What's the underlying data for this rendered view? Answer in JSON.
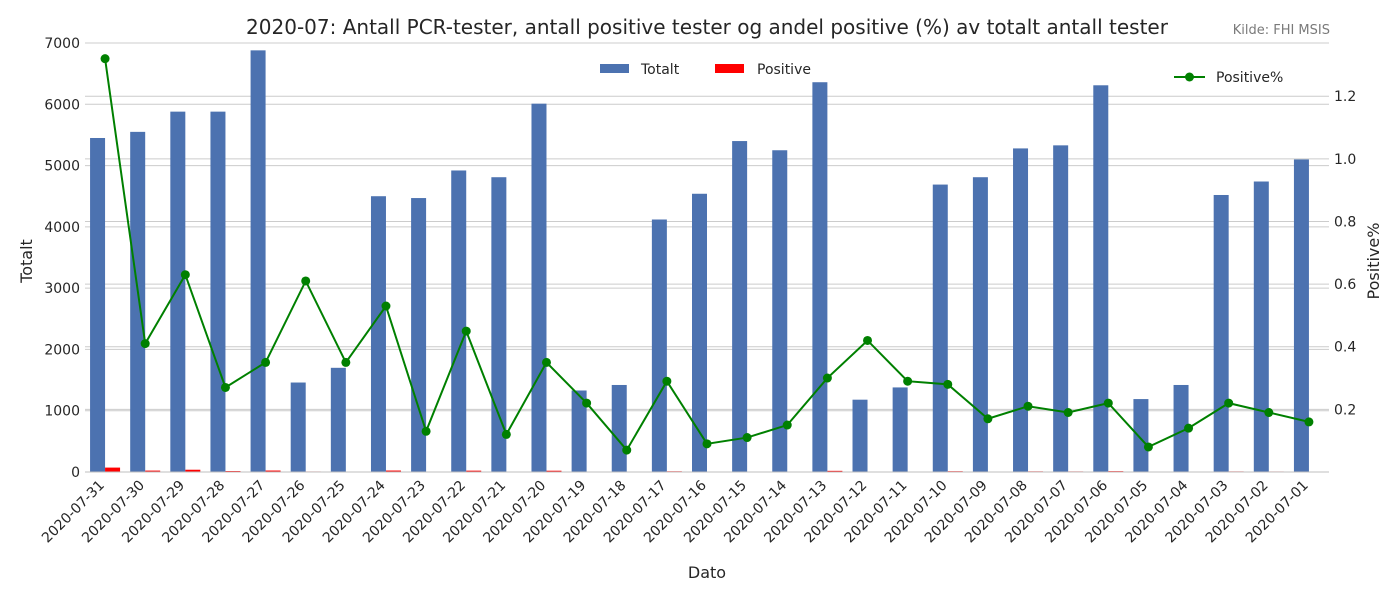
{
  "chart_data": {
    "type": "bar",
    "title": "2020-07: Antall PCR-tester, antall positive tester og andel positive (%) av totalt antall tester",
    "source": "Kilde: FHI MSIS",
    "xlabel": "Dato",
    "ylabel": "Totalt",
    "y2label": "Positive%",
    "ylim": [
      0,
      7000
    ],
    "y2lim": [
      0,
      1.37
    ],
    "yticks": [
      0,
      1000,
      2000,
      3000,
      4000,
      5000,
      6000,
      7000
    ],
    "y2ticks": [
      0.2,
      0.4,
      0.6,
      0.8,
      1.0,
      1.2
    ],
    "grid": true,
    "legend_bars_position": "top-center",
    "legend_line_position": "top-right",
    "categories": [
      "2020-07-31",
      "2020-07-30",
      "2020-07-29",
      "2020-07-28",
      "2020-07-27",
      "2020-07-26",
      "2020-07-25",
      "2020-07-24",
      "2020-07-23",
      "2020-07-22",
      "2020-07-21",
      "2020-07-20",
      "2020-07-19",
      "2020-07-18",
      "2020-07-17",
      "2020-07-16",
      "2020-07-15",
      "2020-07-14",
      "2020-07-13",
      "2020-07-12",
      "2020-07-11",
      "2020-07-10",
      "2020-07-09",
      "2020-07-08",
      "2020-07-07",
      "2020-07-06",
      "2020-07-05",
      "2020-07-04",
      "2020-07-03",
      "2020-07-02",
      "2020-07-01"
    ],
    "series": [
      {
        "name": "Totalt",
        "axis": "left",
        "kind": "bar",
        "color": "#4c72b0",
        "values": [
          5450,
          5550,
          5880,
          5880,
          6880,
          1460,
          1700,
          4500,
          4470,
          4920,
          4810,
          6010,
          1330,
          1420,
          4120,
          4540,
          5400,
          5250,
          6360,
          1180,
          1380,
          4690,
          4810,
          5280,
          5330,
          6310,
          1190,
          1420,
          4520,
          4740,
          5100
        ]
      },
      {
        "name": "Positive",
        "axis": "left",
        "kind": "bar",
        "color": "#ff0000",
        "values": [
          72,
          23,
          37,
          16,
          24,
          9,
          6,
          24,
          6,
          22,
          6,
          21,
          3,
          1,
          12,
          4,
          6,
          8,
          19,
          5,
          4,
          13,
          8,
          11,
          10,
          14,
          1,
          2,
          10,
          9,
          8
        ]
      },
      {
        "name": "Positive%",
        "axis": "right",
        "kind": "line",
        "color": "#008000",
        "values": [
          1.32,
          0.41,
          0.63,
          0.27,
          0.35,
          0.61,
          0.35,
          0.53,
          0.13,
          0.45,
          0.12,
          0.35,
          0.22,
          0.07,
          0.29,
          0.09,
          0.11,
          0.15,
          0.3,
          0.42,
          0.29,
          0.28,
          0.17,
          0.21,
          0.19,
          0.22,
          0.08,
          0.14,
          0.22,
          0.19,
          0.16
        ]
      }
    ]
  }
}
